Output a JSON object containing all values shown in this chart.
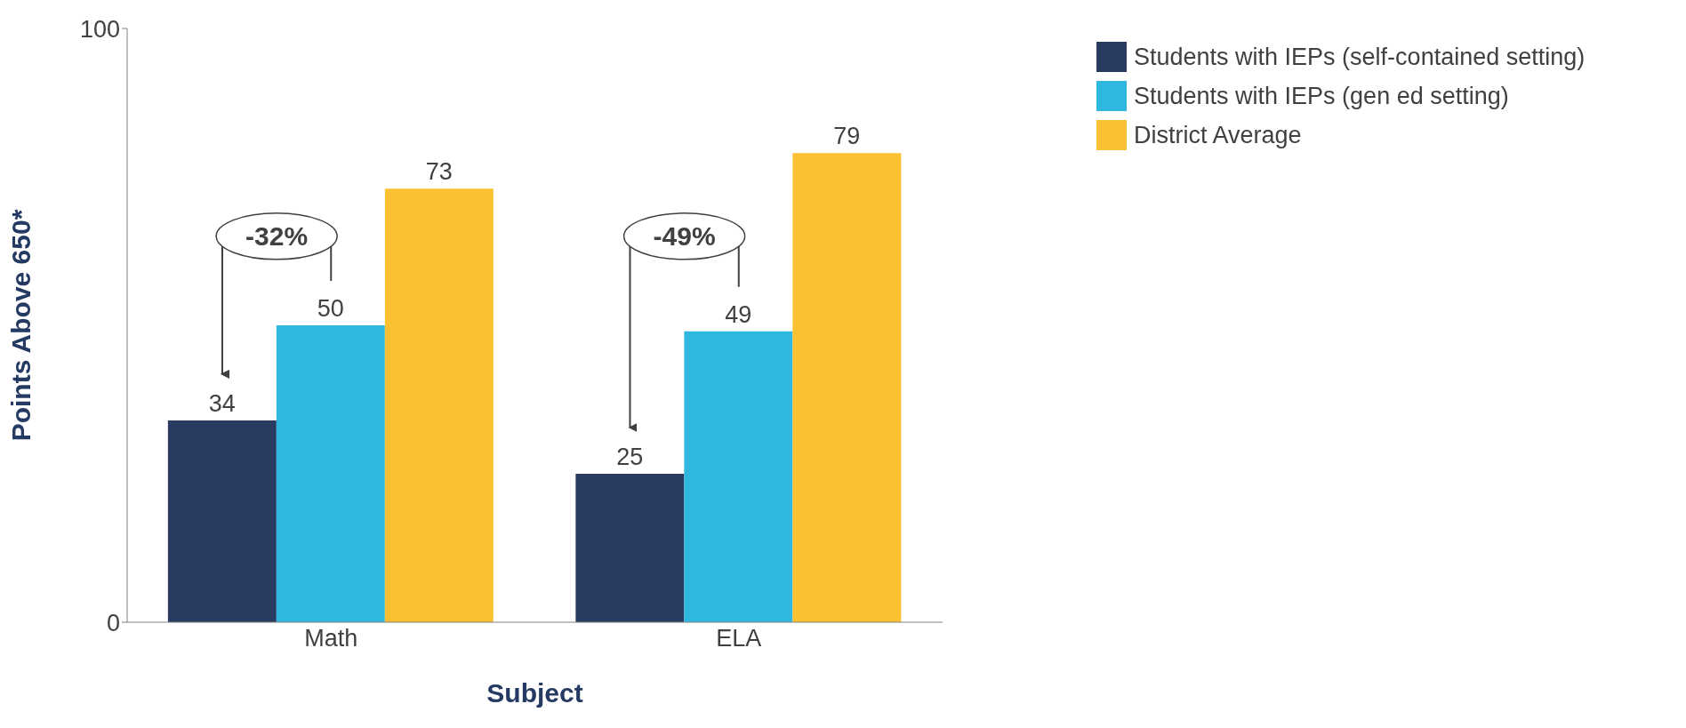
{
  "chart_data": {
    "type": "bar",
    "xlabel": "Subject",
    "ylabel": "Points Above 650*",
    "categories": [
      "Math",
      "ELA"
    ],
    "series": [
      {
        "name": "Students with IEPs (self-contained setting)",
        "color": "#283b60",
        "values": [
          34,
          25
        ]
      },
      {
        "name": "Students with IEPs (gen ed setting)",
        "color": "#2eb8e0",
        "values": [
          50,
          49
        ]
      },
      {
        "name": "District Average",
        "color": "#fcc132",
        "values": [
          73,
          79
        ]
      }
    ],
    "ylim": [
      0,
      100
    ],
    "yticks": [
      0,
      100
    ],
    "grid": false,
    "legend": "top right",
    "data_labels": true,
    "annotations": [
      "-32%",
      "-49%"
    ]
  }
}
